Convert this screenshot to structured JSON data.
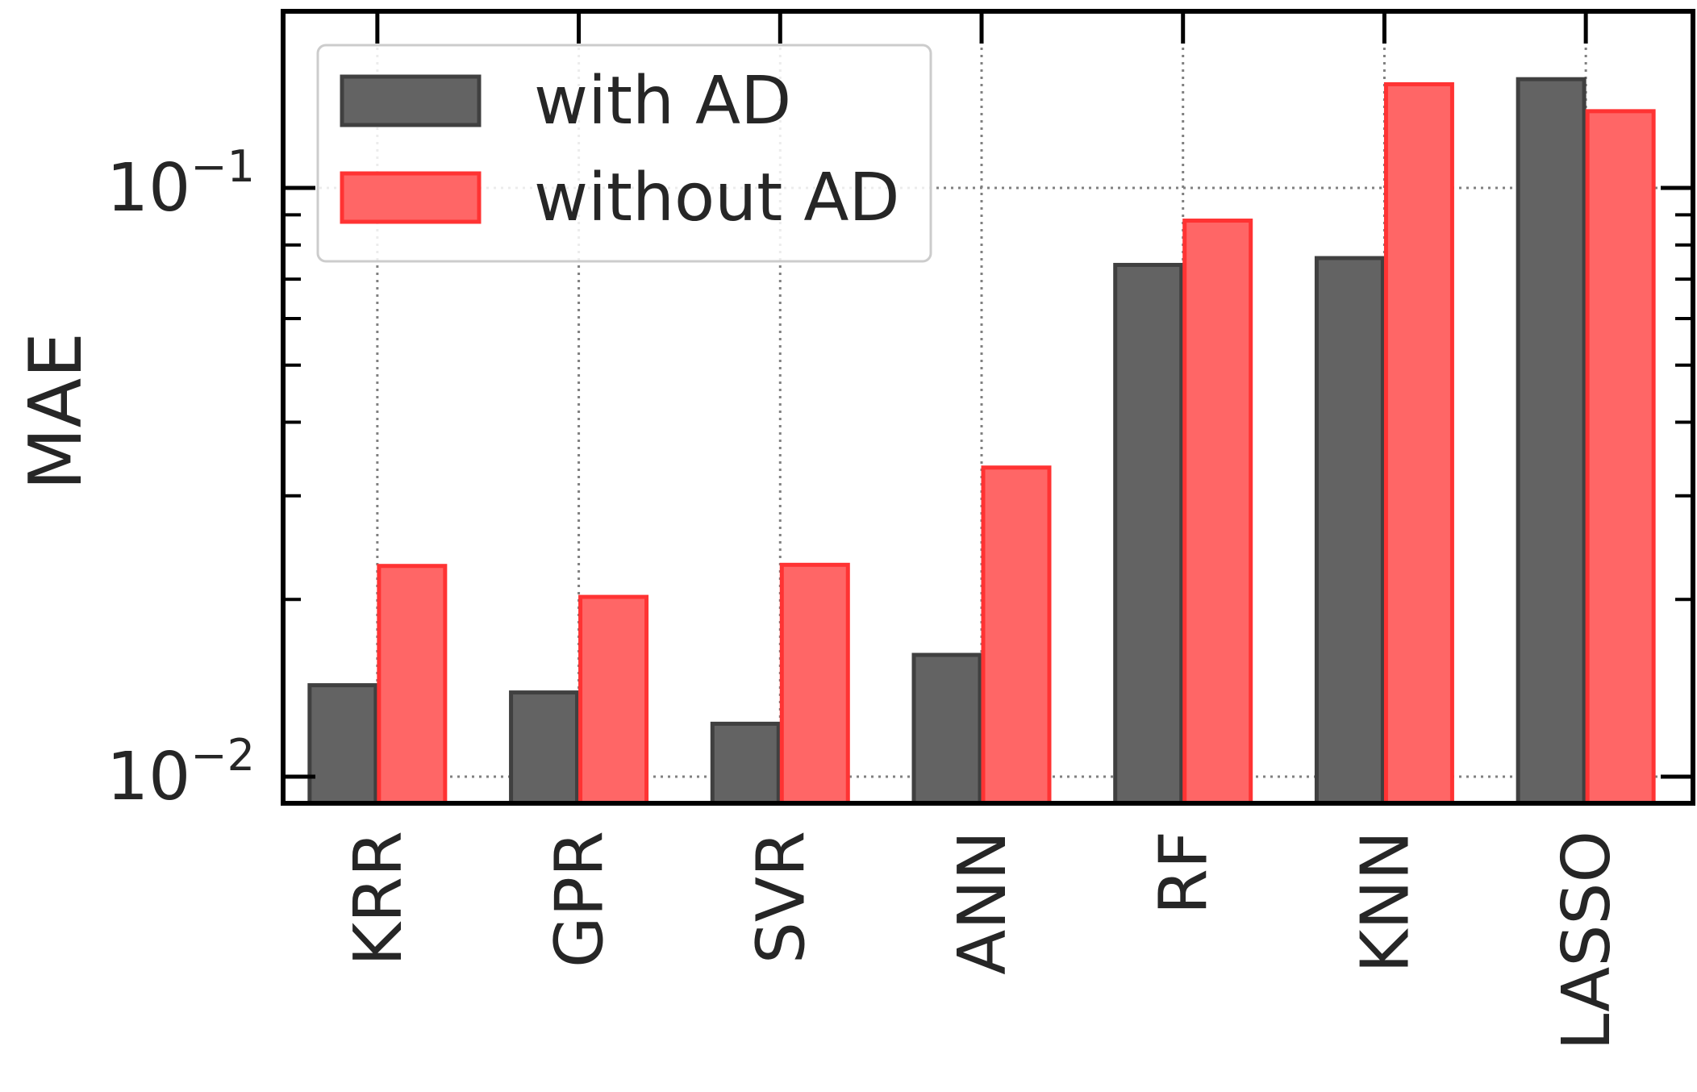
{
  "chart_data": {
    "type": "bar",
    "ylabel": "MAE",
    "xlabel": "",
    "yscale": "log",
    "ylim": [
      0.0091,
      0.2
    ],
    "yticks": [
      {
        "value": 0.01,
        "base": "10",
        "exp": "−2"
      },
      {
        "value": 0.1,
        "base": "10",
        "exp": "−1"
      }
    ],
    "grid": true,
    "legend_position": "top-left",
    "categories": [
      "KRR",
      "GPR",
      "SVR",
      "ANN",
      "RF",
      "KNN",
      "LASSO"
    ],
    "series": [
      {
        "name": "with AD",
        "values": [
          0.0143,
          0.0139,
          0.0123,
          0.0161,
          0.074,
          0.076,
          0.153
        ],
        "fill": "#636363",
        "stroke": "#404040"
      },
      {
        "name": "without AD",
        "values": [
          0.0228,
          0.0202,
          0.0229,
          0.0335,
          0.088,
          0.15,
          0.135
        ],
        "fill": "#ff6666",
        "stroke": "#ff3333"
      }
    ]
  }
}
